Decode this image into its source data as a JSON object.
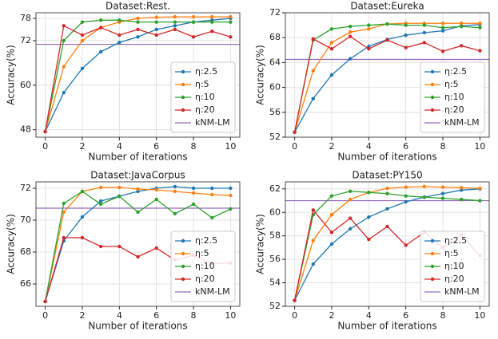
{
  "chart_data": [
    {
      "type": "line",
      "title": "Dataset:Rest.",
      "x_label": "Number of iterations",
      "y_label": "Accuracy(%)",
      "x": [
        0,
        1,
        2,
        3,
        4,
        5,
        6,
        7,
        8,
        9,
        10
      ],
      "xlim": [
        -0.5,
        10.5
      ],
      "xticks": [
        0,
        2,
        4,
        6,
        8,
        10
      ],
      "ylim": [
        46,
        79.5
      ],
      "yticks": [
        48,
        60,
        72,
        78
      ],
      "grid": true,
      "legend": "lower right",
      "series": [
        {
          "name": "η:2.5",
          "color": "#1f77b4",
          "values": [
            47.5,
            58,
            64.5,
            69,
            71.5,
            73,
            75,
            76,
            77,
            77.5,
            78
          ]
        },
        {
          "name": "η:5",
          "color": "#ff7f0e",
          "values": [
            47.5,
            65,
            72,
            75.5,
            77,
            78,
            78.3,
            78.4,
            78.4,
            78.4,
            78.4
          ]
        },
        {
          "name": "η:10",
          "color": "#2ca02c",
          "values": [
            47.5,
            72,
            77,
            77.5,
            77.5,
            77,
            77,
            77,
            77,
            77,
            77
          ]
        },
        {
          "name": "η:20",
          "color": "#d62728",
          "values": [
            47.5,
            76,
            73.5,
            75.5,
            73.5,
            75,
            73.5,
            75,
            73,
            74.5,
            73
          ]
        }
      ],
      "reference": {
        "name": "kNM-LM",
        "color": "#9467bd",
        "value": 71
      }
    },
    {
      "type": "line",
      "title": "Dataset:Eureka",
      "x_label": "Number of iterations",
      "y_label": "Accuracy(%)",
      "x": [
        0,
        1,
        2,
        3,
        4,
        5,
        6,
        7,
        8,
        9,
        10
      ],
      "xlim": [
        -0.5,
        10.5
      ],
      "xticks": [
        0,
        2,
        4,
        6,
        8,
        10
      ],
      "ylim": [
        52,
        72
      ],
      "yticks": [
        52,
        56,
        60,
        64,
        68,
        72
      ],
      "grid": true,
      "legend": "lower right",
      "series": [
        {
          "name": "η:2.5",
          "color": "#1f77b4",
          "values": [
            52.8,
            58.2,
            62,
            64.6,
            66.6,
            67.7,
            68.4,
            68.8,
            69.1,
            69.9,
            70.1
          ]
        },
        {
          "name": "η:5",
          "color": "#ff7f0e",
          "values": [
            52.8,
            62.7,
            67.2,
            68.9,
            69.4,
            70.2,
            70.3,
            70.3,
            70.3,
            70.3,
            70.3
          ]
        },
        {
          "name": "η:10",
          "color": "#2ca02c",
          "values": [
            52.8,
            67.6,
            69.4,
            69.8,
            70,
            70.2,
            70,
            70,
            69.6,
            69.8,
            69.6
          ]
        },
        {
          "name": "η:20",
          "color": "#d62728",
          "values": [
            52.8,
            67.8,
            66.2,
            68.2,
            66.2,
            67.6,
            66.4,
            67.2,
            65.8,
            66.7,
            65.9
          ]
        }
      ],
      "reference": {
        "name": "kNM-LM",
        "color": "#9467bd",
        "value": 64.5
      }
    },
    {
      "type": "line",
      "title": "Dataset:JavaCorpus",
      "x_label": "Number of iterations",
      "y_label": "Accuracy(%)",
      "x": [
        0,
        1,
        2,
        3,
        4,
        5,
        6,
        7,
        8,
        9,
        10
      ],
      "xlim": [
        -0.5,
        10.5
      ],
      "xticks": [
        0,
        2,
        4,
        6,
        8,
        10
      ],
      "ylim": [
        64.6,
        72.4
      ],
      "yticks": [
        66,
        68,
        70,
        72
      ],
      "grid": true,
      "legend": "lower right",
      "series": [
        {
          "name": "η:2.5",
          "color": "#1f77b4",
          "values": [
            64.9,
            68.7,
            70.2,
            71.2,
            71.5,
            71.8,
            72,
            72.1,
            72,
            72,
            72
          ]
        },
        {
          "name": "η:5",
          "color": "#ff7f0e",
          "values": [
            64.9,
            70.5,
            71.8,
            72.05,
            72.05,
            71.95,
            71.9,
            71.8,
            71.7,
            71.6,
            71.55
          ]
        },
        {
          "name": "η:10",
          "color": "#2ca02c",
          "values": [
            64.9,
            71.05,
            71.8,
            71,
            71.5,
            70.5,
            71.3,
            70.4,
            71,
            70.15,
            70.7
          ]
        },
        {
          "name": "η:20",
          "color": "#d62728",
          "values": [
            64.9,
            68.9,
            68.9,
            68.35,
            68.35,
            67.7,
            68.25,
            67.5,
            67.8,
            67.3,
            67.3
          ]
        }
      ],
      "reference": {
        "name": "kNM-LM",
        "color": "#9467bd",
        "value": 70.75
      }
    },
    {
      "type": "line",
      "title": "Dataset:PY150",
      "x_label": "Number of iterations",
      "y_label": "Accuracy(%)",
      "x": [
        0,
        1,
        2,
        3,
        4,
        5,
        6,
        7,
        8,
        9,
        10
      ],
      "xlim": [
        -0.5,
        10.5
      ],
      "xticks": [
        0,
        2,
        4,
        6,
        8,
        10
      ],
      "ylim": [
        52,
        62.6
      ],
      "yticks": [
        52,
        54,
        56,
        58,
        60,
        62
      ],
      "grid": true,
      "legend": "lower right",
      "series": [
        {
          "name": "η:2.5",
          "color": "#1f77b4",
          "values": [
            52.5,
            55.6,
            57.3,
            58.6,
            59.6,
            60.3,
            60.9,
            61.3,
            61.6,
            61.9,
            62
          ]
        },
        {
          "name": "η:5",
          "color": "#ff7f0e",
          "values": [
            52.5,
            57.6,
            59.8,
            61.1,
            61.7,
            62.05,
            62.15,
            62.2,
            62.15,
            62.1,
            62.05
          ]
        },
        {
          "name": "η:10",
          "color": "#2ca02c",
          "values": [
            52.5,
            59.8,
            61.4,
            61.8,
            61.7,
            61.6,
            61.4,
            61.3,
            61.2,
            61.1,
            61
          ]
        },
        {
          "name": "η:20",
          "color": "#d62728",
          "values": [
            52.5,
            60.2,
            58.3,
            59.5,
            57.7,
            58.8,
            57.2,
            58.3,
            57,
            58.1,
            56.3
          ]
        }
      ],
      "reference": {
        "name": "kNM-LM",
        "color": "#9467bd",
        "value": 61
      }
    }
  ]
}
